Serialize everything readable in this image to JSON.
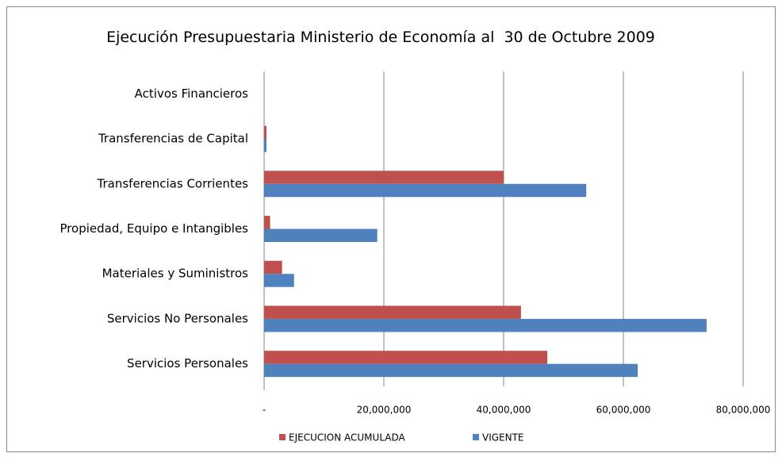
{
  "chart_data": {
    "type": "hbar",
    "title": "Ejecución Presupuestaria Ministerio de Economía al  30 de Octubre 2009",
    "categories": [
      "Activos Financieros",
      "Transferencias de Capital",
      "Transferencias Corrientes",
      "Propiedad, Equipo e Intangibles",
      "Materiales y Suministros",
      "Servicios No Personales",
      "Servicios  Personales"
    ],
    "series": [
      {
        "name": "EJECUCION ACUMULADA",
        "color": "#c0504d",
        "values": [
          0,
          400000,
          40000000,
          1000000,
          3000000,
          42900000,
          47300000
        ]
      },
      {
        "name": "VIGENTE",
        "color": "#4f81bd",
        "values": [
          0,
          400000,
          53800000,
          18900000,
          5000000,
          73900000,
          62400000
        ]
      }
    ],
    "xlim": [
      0,
      80000000
    ],
    "xticks": [
      {
        "value": 0,
        "label": "-"
      },
      {
        "value": 20000000,
        "label": "20,000,000"
      },
      {
        "value": 40000000,
        "label": "40,000,000"
      },
      {
        "value": 60000000,
        "label": "60,000,000"
      },
      {
        "value": 80000000,
        "label": "80,000,000"
      }
    ],
    "grid": true,
    "legend": "bottom"
  }
}
